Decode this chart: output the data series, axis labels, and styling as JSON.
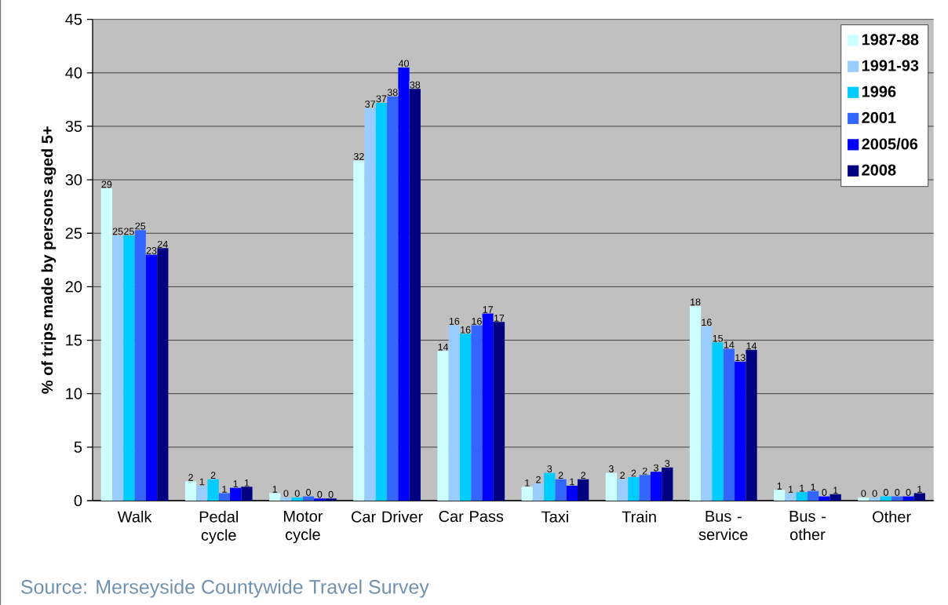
{
  "chart_data": {
    "type": "bar",
    "ylabel": "% of trips made by persons aged 5+",
    "categories": [
      "Walk",
      "Pedal cycle",
      "Motor cycle",
      "Car Driver",
      "Car Pass",
      "Taxi",
      "Train",
      "Bus - service",
      "Bus - other",
      "Other"
    ],
    "series": [
      {
        "name": "1987-88",
        "color": "#ccffff",
        "values": [
          29.2,
          1.8,
          0.7,
          31.8,
          14.0,
          1.3,
          2.6,
          18.2,
          1.0,
          0.3
        ],
        "value_labels": [
          "29",
          "2",
          "1",
          "32",
          "14",
          "1",
          "3",
          "18",
          "1",
          "0"
        ]
      },
      {
        "name": "1991-93",
        "color": "#99ccff",
        "values": [
          24.8,
          1.4,
          0.3,
          36.7,
          16.4,
          1.6,
          2.0,
          16.3,
          0.7,
          0.3
        ],
        "value_labels": [
          "25",
          "1",
          "0",
          "37",
          "16",
          "2",
          "2",
          "16",
          "1",
          "0"
        ]
      },
      {
        "name": "1996",
        "color": "#00ccff",
        "values": [
          24.8,
          2.0,
          0.3,
          37.2,
          15.6,
          2.6,
          2.2,
          14.8,
          0.8,
          0.4
        ],
        "value_labels": [
          "25",
          "2",
          "0",
          "37",
          "16",
          "3",
          "2",
          "15",
          "1",
          "0"
        ]
      },
      {
        "name": "2001",
        "color": "#3366ff",
        "values": [
          25.3,
          0.7,
          0.4,
          37.8,
          16.4,
          2.0,
          2.4,
          14.2,
          0.9,
          0.4
        ],
        "value_labels": [
          "25",
          "1",
          "0",
          "38",
          "16",
          "2",
          "2",
          "14",
          "1",
          "0"
        ]
      },
      {
        "name": "2005/06",
        "color": "#0000ff",
        "values": [
          23.0,
          1.2,
          0.2,
          40.5,
          17.5,
          1.4,
          2.7,
          13.0,
          0.4,
          0.4
        ],
        "value_labels": [
          "23",
          "1",
          "0",
          "40",
          "17",
          "1",
          "3",
          "13",
          "0",
          "0"
        ]
      },
      {
        "name": "2008",
        "color": "#000080",
        "values": [
          23.6,
          1.3,
          0.2,
          38.5,
          16.7,
          2.0,
          3.1,
          14.1,
          0.6,
          0.7
        ],
        "value_labels": [
          "24",
          "1",
          "0",
          "38",
          "17",
          "2",
          "3",
          "14",
          "1",
          "1"
        ]
      }
    ],
    "ylim": [
      0,
      45
    ],
    "yticks": [
      0,
      5,
      10,
      15,
      20,
      25,
      30,
      35,
      40,
      45
    ],
    "grid": "y",
    "legend": "top right",
    "annotations": [
      "Source:   Merseyside Countywide Travel Survey"
    ]
  }
}
